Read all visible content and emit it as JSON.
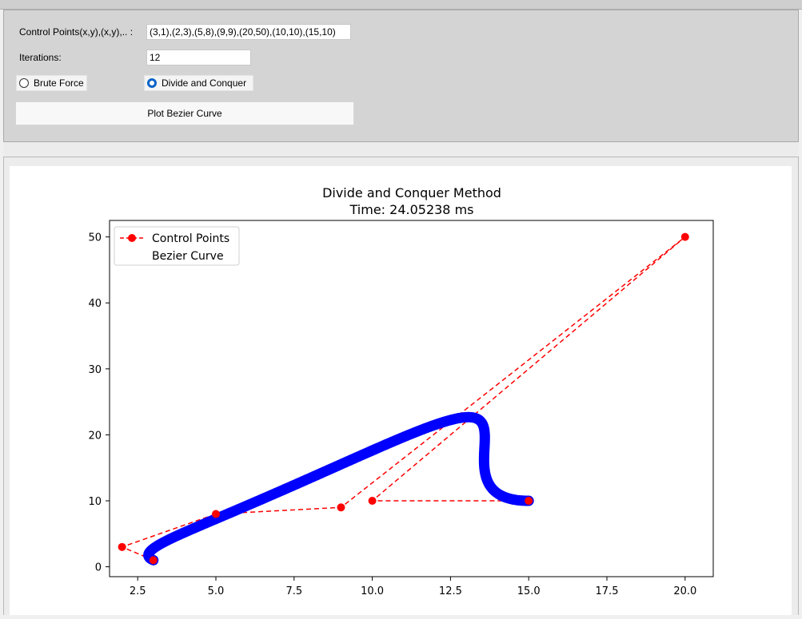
{
  "controls": {
    "control_points_label": "Control Points(x,y),(x,y),.. :",
    "control_points_value": "(3,1),(2,3),(5,8),(9,9),(20,50),(10,10),(15,10)",
    "iterations_label": "Iterations:",
    "iterations_value": "12",
    "radio_brute_force": "Brute Force",
    "radio_divide_conquer": "Divide and Conquer",
    "selected_method": "Divide and Conquer",
    "plot_button": "Plot Bezier Curve"
  },
  "chart_data": {
    "type": "line",
    "title": "Divide and Conquer Method",
    "subtitle": "Time: 24.05238 ms",
    "xlim": [
      1.6,
      20.9
    ],
    "ylim": [
      -1.5,
      52.5
    ],
    "xticks": [
      2.5,
      5.0,
      7.5,
      10.0,
      12.5,
      15.0,
      17.5,
      20.0
    ],
    "xtick_labels": [
      "2.5",
      "5.0",
      "7.5",
      "10.0",
      "12.5",
      "15.0",
      "17.5",
      "20.0"
    ],
    "yticks": [
      0,
      10,
      20,
      30,
      40,
      50
    ],
    "ytick_labels": [
      "0",
      "10",
      "20",
      "30",
      "40",
      "50"
    ],
    "legend_position": "top-left",
    "series": [
      {
        "name": "Control Points",
        "color": "#ff0000",
        "style": "dashed-with-markers",
        "points": [
          [
            3,
            1
          ],
          [
            2,
            3
          ],
          [
            5,
            8
          ],
          [
            9,
            9
          ],
          [
            20,
            50
          ],
          [
            10,
            10
          ],
          [
            15,
            10
          ]
        ]
      },
      {
        "name": "Bezier Curve",
        "color": "#0000ff",
        "style": "thick-markers",
        "iterations": 12
      }
    ]
  }
}
